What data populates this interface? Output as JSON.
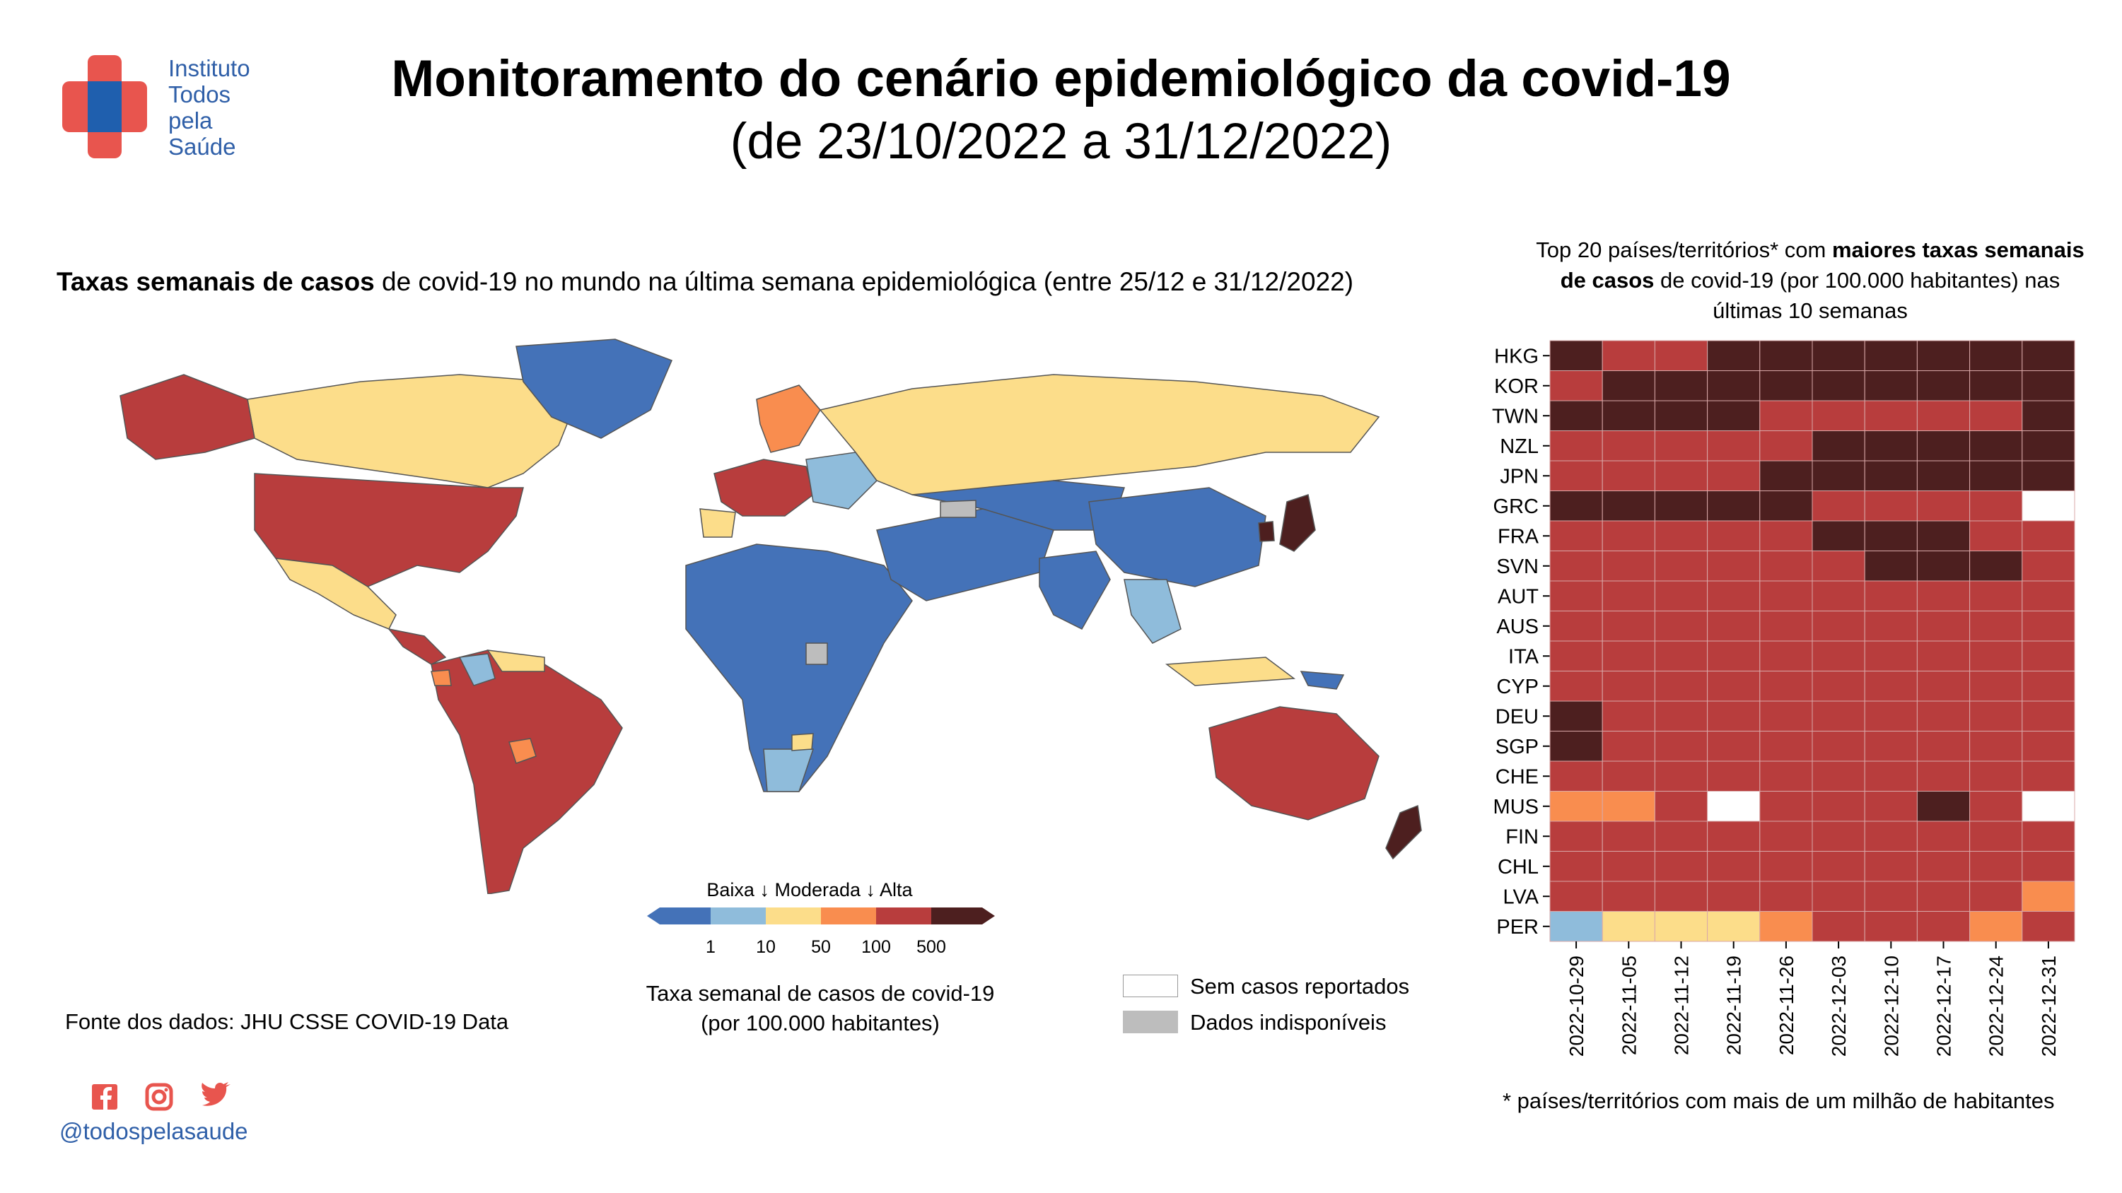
{
  "header": {
    "logo_text": [
      "Instituto",
      "Todos",
      "pela",
      "Saúde"
    ],
    "title_line1": "Monitoramento do cenário epidemiológico da covid-19",
    "title_line2": "(de 23/10/2022 a 31/12/2022)"
  },
  "map": {
    "subtitle_bold": "Taxas semanais de casos",
    "subtitle_rest": " de covid-19 no mundo na última semana epidemiológica (entre 25/12 e 31/12/2022)",
    "scale_header": "Baixa ↓ Moderada ↓ Alta",
    "scale_ticks": [
      "1",
      "10",
      "50",
      "100",
      "500"
    ],
    "scale_colors": [
      "#4472b8",
      "#8fbcdb",
      "#fcdd8a",
      "#f98d4f",
      "#b83d3d",
      "#4d1f1f"
    ],
    "scale_caption_line1": "Taxa semanal de casos de covid-19",
    "scale_caption_line2": "(por 100.000 habitantes)",
    "legend_white": "Sem casos reportados",
    "legend_gray": "Dados indisponíveis",
    "source": "Fonte dos dados: JHU CSSE COVID-19 Data"
  },
  "social": {
    "icons": [
      "facebook-icon",
      "instagram-icon",
      "twitter-icon"
    ],
    "handle": "@todospelasaude",
    "color": "#e8554e"
  },
  "chart_data": {
    "type": "heatmap",
    "title_pre": "Top 20 países/territórios* com ",
    "title_bold": "maiores taxas semanais de casos",
    "title_post": " de covid-19 (por 100.000 habitantes) nas últimas 10 semanas",
    "footnote": "* países/territórios com mais de um milhão de habitantes",
    "x": [
      "2022-10-29",
      "2022-11-05",
      "2022-11-12",
      "2022-11-19",
      "2022-11-26",
      "2022-12-03",
      "2022-12-10",
      "2022-12-17",
      "2022-12-24",
      "2022-12-31"
    ],
    "y": [
      "HKG",
      "KOR",
      "TWN",
      "NZL",
      "JPN",
      "GRC",
      "FRA",
      "SVN",
      "AUT",
      "AUS",
      "ITA",
      "CYP",
      "DEU",
      "SGP",
      "CHE",
      "MUS",
      "FIN",
      "CHL",
      "LVA",
      "PER"
    ],
    "class_colors": {
      "baixa": "#8fbcdb",
      "moderada_baixa": "#fcdd8a",
      "moderada_alta": "#f98d4f",
      "alta": "#b83d3d",
      "muito_alta": "#4d1f1f",
      "sem_casos": "#ffffff"
    },
    "classes": [
      [
        "muito_alta",
        "alta",
        "alta",
        "muito_alta",
        "muito_alta",
        "muito_alta",
        "muito_alta",
        "muito_alta",
        "muito_alta",
        "muito_alta"
      ],
      [
        "alta",
        "muito_alta",
        "muito_alta",
        "muito_alta",
        "muito_alta",
        "muito_alta",
        "muito_alta",
        "muito_alta",
        "muito_alta",
        "muito_alta"
      ],
      [
        "muito_alta",
        "muito_alta",
        "muito_alta",
        "muito_alta",
        "alta",
        "alta",
        "alta",
        "alta",
        "alta",
        "muito_alta"
      ],
      [
        "alta",
        "alta",
        "alta",
        "alta",
        "alta",
        "muito_alta",
        "muito_alta",
        "muito_alta",
        "muito_alta",
        "muito_alta"
      ],
      [
        "alta",
        "alta",
        "alta",
        "alta",
        "muito_alta",
        "muito_alta",
        "muito_alta",
        "muito_alta",
        "muito_alta",
        "muito_alta"
      ],
      [
        "muito_alta",
        "muito_alta",
        "muito_alta",
        "muito_alta",
        "muito_alta",
        "alta",
        "alta",
        "alta",
        "alta",
        "sem_casos"
      ],
      [
        "alta",
        "alta",
        "alta",
        "alta",
        "alta",
        "muito_alta",
        "muito_alta",
        "muito_alta",
        "alta",
        "alta"
      ],
      [
        "alta",
        "alta",
        "alta",
        "alta",
        "alta",
        "alta",
        "muito_alta",
        "muito_alta",
        "muito_alta",
        "alta"
      ],
      [
        "alta",
        "alta",
        "alta",
        "alta",
        "alta",
        "alta",
        "alta",
        "alta",
        "alta",
        "alta"
      ],
      [
        "alta",
        "alta",
        "alta",
        "alta",
        "alta",
        "alta",
        "alta",
        "alta",
        "alta",
        "alta"
      ],
      [
        "alta",
        "alta",
        "alta",
        "alta",
        "alta",
        "alta",
        "alta",
        "alta",
        "alta",
        "alta"
      ],
      [
        "alta",
        "alta",
        "alta",
        "alta",
        "alta",
        "alta",
        "alta",
        "alta",
        "alta",
        "alta"
      ],
      [
        "muito_alta",
        "alta",
        "alta",
        "alta",
        "alta",
        "alta",
        "alta",
        "alta",
        "alta",
        "alta"
      ],
      [
        "muito_alta",
        "alta",
        "alta",
        "alta",
        "alta",
        "alta",
        "alta",
        "alta",
        "alta",
        "alta"
      ],
      [
        "alta",
        "alta",
        "alta",
        "alta",
        "alta",
        "alta",
        "alta",
        "alta",
        "alta",
        "alta"
      ],
      [
        "moderada_alta",
        "moderada_alta",
        "alta",
        "sem_casos",
        "alta",
        "alta",
        "alta",
        "muito_alta",
        "alta",
        "sem_casos"
      ],
      [
        "alta",
        "alta",
        "alta",
        "alta",
        "alta",
        "alta",
        "alta",
        "alta",
        "alta",
        "alta"
      ],
      [
        "alta",
        "alta",
        "alta",
        "alta",
        "alta",
        "alta",
        "alta",
        "alta",
        "alta",
        "alta"
      ],
      [
        "alta",
        "alta",
        "alta",
        "alta",
        "alta",
        "alta",
        "alta",
        "alta",
        "alta",
        "moderada_alta"
      ],
      [
        "baixa",
        "moderada_baixa",
        "moderada_baixa",
        "moderada_baixa",
        "moderada_alta",
        "alta",
        "alta",
        "alta",
        "moderada_alta",
        "alta"
      ]
    ]
  }
}
